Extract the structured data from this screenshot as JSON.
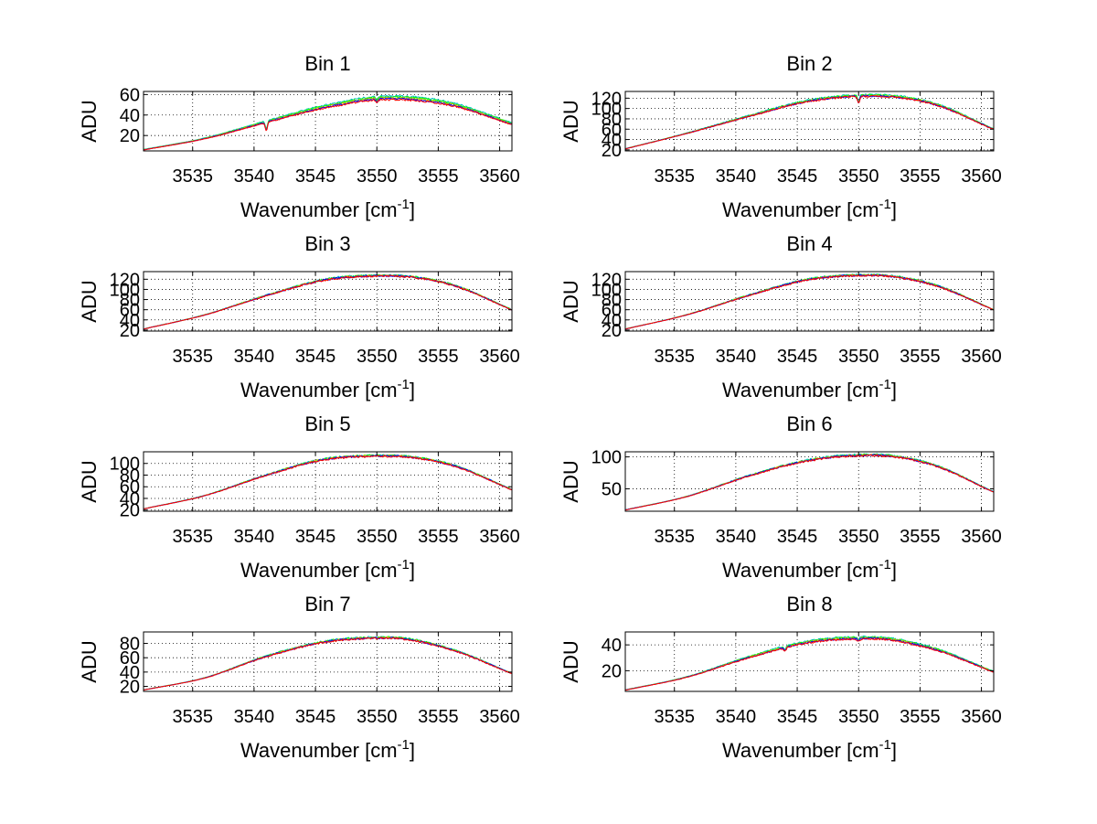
{
  "figure": {
    "background": "#ffffff"
  },
  "chart_data": [
    {
      "type": "line",
      "title": "Bin 1",
      "xlabel": "Wavenumber [cm",
      "xlabel_sup": "-1",
      "xlabel_end": "]",
      "ylabel": "ADU",
      "xlim": [
        3531,
        3561
      ],
      "ylim": [
        5,
        63
      ],
      "xticks": [
        3535,
        3540,
        3545,
        3550,
        3555,
        3560
      ],
      "yticks": [
        20,
        40,
        60
      ],
      "grid": true,
      "peak_x": 3551,
      "profile": {
        "x": [
          3531,
          3536,
          3541,
          3546,
          3551,
          3556,
          3561
        ],
        "y": [
          6,
          17,
          33,
          48,
          56,
          50,
          31
        ]
      },
      "series_colors": [
        "#00bfbf",
        "#00ff00",
        "#bfbf00",
        "#0000ff",
        "#ff0000"
      ],
      "series_offsets": [
        3,
        2,
        1,
        0,
        -1
      ],
      "dips": [
        {
          "x": 3541,
          "depth": 8
        },
        {
          "x": 3550,
          "depth": 3
        }
      ]
    },
    {
      "type": "line",
      "title": "Bin 2",
      "xlabel": "Wavenumber [cm",
      "xlabel_sup": "-1",
      "xlabel_end": "]",
      "ylabel": "ADU",
      "xlim": [
        3531,
        3561
      ],
      "ylim": [
        18,
        133
      ],
      "xticks": [
        3535,
        3540,
        3545,
        3550,
        3555,
        3560
      ],
      "yticks": [
        20,
        40,
        60,
        80,
        100,
        120
      ],
      "grid": true,
      "peak_x": 3550,
      "profile": {
        "x": [
          3531,
          3536,
          3541,
          3546,
          3551,
          3556,
          3561
        ],
        "y": [
          22,
          52,
          85,
          115,
          125,
          110,
          60
        ]
      },
      "series_colors": [
        "#00bfbf",
        "#00ff00",
        "#bfbf00",
        "#0000ff",
        "#ff0000"
      ],
      "series_offsets": [
        2,
        1,
        0,
        -1,
        -1.5
      ],
      "dips": [
        {
          "x": 3550,
          "depth": 12
        }
      ]
    },
    {
      "type": "line",
      "title": "Bin 3",
      "xlabel": "Wavenumber [cm",
      "xlabel_sup": "-1",
      "xlabel_end": "]",
      "ylabel": "ADU",
      "xlim": [
        3531,
        3561
      ],
      "ylim": [
        18,
        135
      ],
      "xticks": [
        3535,
        3540,
        3545,
        3550,
        3555,
        3560
      ],
      "yticks": [
        20,
        40,
        60,
        80,
        100,
        120
      ],
      "grid": true,
      "peak_x": 3548,
      "profile": {
        "x": [
          3531,
          3536,
          3541,
          3546,
          3551,
          3556,
          3561
        ],
        "y": [
          22,
          50,
          88,
          120,
          127,
          110,
          60
        ]
      },
      "series_colors": [
        "#00bfbf",
        "#00ff00",
        "#bfbf00",
        "#0000ff",
        "#ff0000"
      ],
      "series_offsets": [
        1,
        0.5,
        0,
        -0.5,
        -1
      ],
      "dips": []
    },
    {
      "type": "line",
      "title": "Bin 4",
      "xlabel": "Wavenumber [cm",
      "xlabel_sup": "-1",
      "xlabel_end": "]",
      "ylabel": "ADU",
      "xlim": [
        3531,
        3561
      ],
      "ylim": [
        18,
        135
      ],
      "xticks": [
        3535,
        3540,
        3545,
        3550,
        3555,
        3560
      ],
      "yticks": [
        20,
        40,
        60,
        80,
        100,
        120
      ],
      "grid": true,
      "peak_x": 3550,
      "profile": {
        "x": [
          3531,
          3536,
          3541,
          3546,
          3551,
          3556,
          3561
        ],
        "y": [
          22,
          50,
          88,
          120,
          128,
          110,
          60
        ]
      },
      "series_colors": [
        "#00bfbf",
        "#00ff00",
        "#bfbf00",
        "#0000ff",
        "#ff0000"
      ],
      "series_offsets": [
        1,
        0.5,
        0,
        -0.5,
        -1
      ],
      "dips": []
    },
    {
      "type": "line",
      "title": "Bin 5",
      "xlabel": "Wavenumber [cm",
      "xlabel_sup": "-1",
      "xlabel_end": "]",
      "ylabel": "ADU",
      "xlim": [
        3531,
        3561
      ],
      "ylim": [
        18,
        120
      ],
      "xticks": [
        3535,
        3540,
        3545,
        3550,
        3555,
        3560
      ],
      "yticks": [
        20,
        40,
        60,
        80,
        100
      ],
      "grid": true,
      "peak_x": 3548,
      "profile": {
        "x": [
          3531,
          3536,
          3541,
          3546,
          3551,
          3556,
          3561
        ],
        "y": [
          22,
          45,
          80,
          108,
          113,
          98,
          55
        ]
      },
      "series_colors": [
        "#00bfbf",
        "#00ff00",
        "#bfbf00",
        "#0000ff",
        "#ff0000"
      ],
      "series_offsets": [
        1,
        0.5,
        0,
        -0.5,
        -1
      ],
      "dips": []
    },
    {
      "type": "line",
      "title": "Bin 6",
      "xlabel": "Wavenumber [cm",
      "xlabel_sup": "-1",
      "xlabel_end": "]",
      "ylabel": "ADU",
      "xlim": [
        3531,
        3561
      ],
      "ylim": [
        15,
        108
      ],
      "xticks": [
        3535,
        3540,
        3545,
        3550,
        3555,
        3560
      ],
      "yticks": [
        50,
        100
      ],
      "grid": true,
      "peak_x": 3549,
      "profile": {
        "x": [
          3531,
          3536,
          3541,
          3546,
          3551,
          3556,
          3561
        ],
        "y": [
          17,
          38,
          70,
          95,
          103,
          88,
          45
        ]
      },
      "series_colors": [
        "#00bfbf",
        "#00ff00",
        "#bfbf00",
        "#0000ff",
        "#ff0000"
      ],
      "series_offsets": [
        1,
        0.5,
        0,
        -0.5,
        -1
      ],
      "dips": []
    },
    {
      "type": "line",
      "title": "Bin 7",
      "xlabel": "Wavenumber [cm",
      "xlabel_sup": "-1",
      "xlabel_end": "]",
      "ylabel": "ADU",
      "xlim": [
        3531,
        3561
      ],
      "ylim": [
        13,
        96
      ],
      "xticks": [
        3535,
        3540,
        3545,
        3550,
        3555,
        3560
      ],
      "yticks": [
        20,
        40,
        60,
        80
      ],
      "grid": true,
      "peak_x": 3549,
      "profile": {
        "x": [
          3531,
          3536,
          3541,
          3546,
          3551,
          3556,
          3561
        ],
        "y": [
          15,
          32,
          62,
          83,
          88,
          72,
          38
        ]
      },
      "series_colors": [
        "#00bfbf",
        "#00ff00",
        "#bfbf00",
        "#0000ff",
        "#ff0000"
      ],
      "series_offsets": [
        1,
        0.5,
        0,
        -0.5,
        -1
      ],
      "dips": []
    },
    {
      "type": "line",
      "title": "Bin 8",
      "xlabel": "Wavenumber [cm",
      "xlabel_sup": "-1",
      "xlabel_end": "]",
      "ylabel": "ADU",
      "xlim": [
        3531,
        3561
      ],
      "ylim": [
        4,
        50
      ],
      "xticks": [
        3535,
        3540,
        3545,
        3550,
        3555,
        3560
      ],
      "yticks": [
        20,
        40
      ],
      "grid": true,
      "peak_x": 3548,
      "profile": {
        "x": [
          3531,
          3536,
          3541,
          3546,
          3551,
          3556,
          3561
        ],
        "y": [
          5,
          15,
          30,
          42,
          45,
          37,
          19
        ]
      },
      "series_colors": [
        "#00bfbf",
        "#00ff00",
        "#bfbf00",
        "#0000ff",
        "#ff0000"
      ],
      "series_offsets": [
        1.5,
        1,
        0.5,
        0,
        -0.5
      ],
      "dips": [
        {
          "x": 3544,
          "depth": 3
        },
        {
          "x": 3550,
          "depth": 2
        }
      ]
    }
  ]
}
